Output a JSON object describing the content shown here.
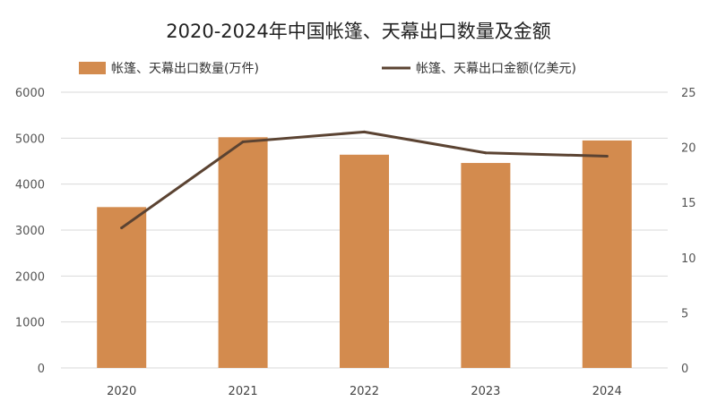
{
  "chart_data": {
    "type": "bar",
    "title": "2020-2024年中国帐篷、天幕出口数量及金额",
    "categories": [
      "2020",
      "2021",
      "2022",
      "2023",
      "2024"
    ],
    "series": [
      {
        "name": "帐篷、天幕出口数量(万件)",
        "type": "bar",
        "axis": "left",
        "color": "#D38B4E",
        "values": [
          3500,
          5020,
          4640,
          4460,
          4950
        ]
      },
      {
        "name": "帐篷、天幕出口金额(亿美元)",
        "type": "line",
        "axis": "right",
        "color": "#5B4332",
        "values": [
          12.7,
          20.5,
          21.4,
          19.5,
          19.2
        ]
      }
    ],
    "y_left": {
      "min": 0,
      "max": 6000,
      "ticks": [
        0,
        1000,
        2000,
        3000,
        4000,
        5000,
        6000
      ]
    },
    "y_right": {
      "min": 0,
      "max": 25,
      "ticks": [
        0,
        5,
        10,
        15,
        20,
        25
      ]
    },
    "grid": true,
    "legend_position": "top"
  }
}
